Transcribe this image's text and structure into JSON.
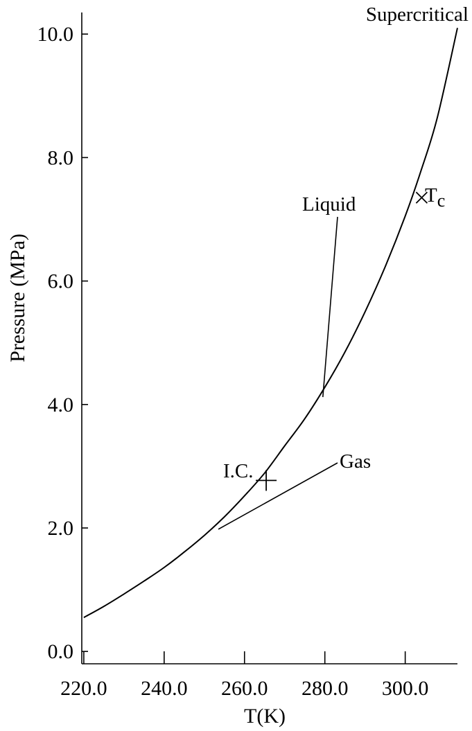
{
  "chart_data": {
    "type": "line",
    "xlabel": "T(K)",
    "ylabel": "Pressure (MPa)",
    "xlim": [
      219.5,
      313
    ],
    "ylim": [
      -0.2,
      10.35
    ],
    "x_ticks": [
      220,
      240,
      260,
      280,
      300
    ],
    "x_tick_labels": [
      "220.0",
      "240.0",
      "260.0",
      "280.0",
      "300.0"
    ],
    "y_ticks": [
      0,
      2,
      4,
      6,
      8,
      10
    ],
    "y_tick_labels": [
      "0.0",
      "2.0",
      "4.0",
      "6.0",
      "8.0",
      "10.0"
    ],
    "grid": false,
    "series": [
      {
        "x": [
          220,
          225,
          230,
          235,
          240,
          245,
          250,
          255,
          260,
          265,
          270,
          275,
          280,
          285,
          290,
          295,
          300,
          304,
          308,
          313
        ],
        "y": [
          0.55,
          0.73,
          0.93,
          1.14,
          1.36,
          1.61,
          1.88,
          2.18,
          2.52,
          2.89,
          3.33,
          3.77,
          4.28,
          4.85,
          5.5,
          6.23,
          7.05,
          7.8,
          8.65,
          10.1
        ]
      }
    ],
    "points": [
      {
        "label": "I.C.",
        "x": 265.4,
        "y": 2.77,
        "marker": "plus"
      },
      {
        "label": "T",
        "subscript": "c",
        "x": 304.1,
        "y": 7.35,
        "marker": "x"
      }
    ],
    "annotations": [
      {
        "text": "Supercritical",
        "x": 313,
        "y": 10.15
      },
      {
        "text": "Liquid",
        "x": 281,
        "y": 7.2,
        "points_to": [
          279.5,
          4.12
        ]
      },
      {
        "text": "Gas",
        "x": 283,
        "y": 3.05,
        "points_to": [
          253.5,
          1.98
        ]
      }
    ]
  }
}
